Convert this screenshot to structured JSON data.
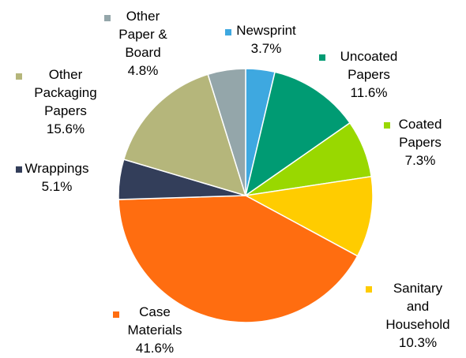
{
  "chart_data": {
    "type": "pie",
    "title": "",
    "slices": [
      {
        "name_lines": [
          "Newsprint"
        ],
        "pct_text": "3.7%",
        "value": 3.7,
        "color": "#3ea8e0"
      },
      {
        "name_lines": [
          "Uncoated",
          "Papers"
        ],
        "pct_text": "11.6%",
        "value": 11.6,
        "color": "#009b73"
      },
      {
        "name_lines": [
          "Coated",
          "Papers"
        ],
        "pct_text": "7.3%",
        "value": 7.3,
        "color": "#99d800"
      },
      {
        "name_lines": [
          "Sanitary",
          "and",
          "Household"
        ],
        "pct_text": "10.3%",
        "value": 10.3,
        "color": "#ffcc00"
      },
      {
        "name_lines": [
          "Case",
          "Materials"
        ],
        "pct_text": "41.6%",
        "value": 41.6,
        "color": "#ff6d10"
      },
      {
        "name_lines": [
          "Wrappings"
        ],
        "pct_text": "5.1%",
        "value": 5.1,
        "color": "#333e5a"
      },
      {
        "name_lines": [
          "Other",
          "Packaging",
          "Papers"
        ],
        "pct_text": "15.6%",
        "value": 15.6,
        "color": "#b5b67b"
      },
      {
        "name_lines": [
          "Other",
          "Paper &",
          "Board"
        ],
        "pct_text": "4.8%",
        "value": 4.8,
        "color": "#94a6aa"
      }
    ]
  }
}
